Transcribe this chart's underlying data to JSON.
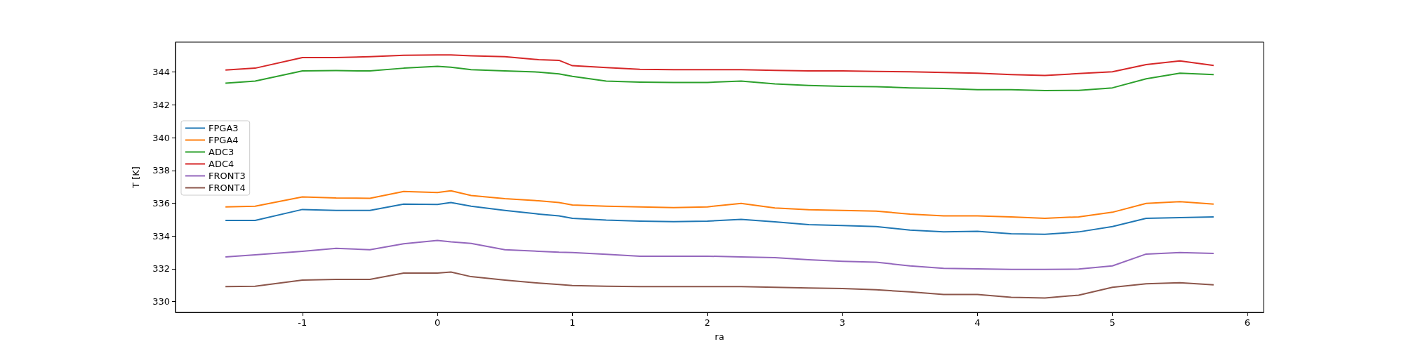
{
  "chart_data": {
    "type": "line",
    "xlabel": "ra",
    "ylabel": "T [K]",
    "x": [
      -1.57,
      -1.35,
      -1,
      -0.75,
      -0.5,
      -0.25,
      0,
      0.1,
      0.25,
      0.5,
      0.75,
      0.9,
      1,
      1.25,
      1.5,
      1.75,
      2,
      2.25,
      2.5,
      2.75,
      3,
      3.25,
      3.5,
      3.75,
      4,
      4.25,
      4.5,
      4.75,
      5,
      5.25,
      5.5,
      5.75
    ],
    "xlim": [
      -1.94,
      6.12
    ],
    "xticks": [
      -1,
      0,
      1,
      2,
      3,
      4,
      5,
      6
    ],
    "ylim": [
      329.34,
      345.83
    ],
    "yticks": [
      330,
      332,
      334,
      336,
      338,
      340,
      342,
      344
    ],
    "legend": "center left",
    "grid": false,
    "marker": "none",
    "line_style": "solid",
    "series": [
      {
        "name": "FPGA3",
        "color": "#1f77b4",
        "values": [
          334.95,
          334.95,
          335.62,
          335.56,
          335.56,
          335.95,
          335.93,
          336.04,
          335.82,
          335.56,
          335.34,
          335.23,
          335.08,
          334.97,
          334.91,
          334.88,
          334.91,
          335.01,
          334.86,
          334.69,
          334.64,
          334.58,
          334.36,
          334.25,
          334.29,
          334.14,
          334.1,
          334.25,
          334.58,
          335.08,
          335.12,
          335.17
        ]
      },
      {
        "name": "FPGA4",
        "color": "#ff7f0e",
        "values": [
          335.78,
          335.82,
          336.39,
          336.32,
          336.3,
          336.72,
          336.65,
          336.76,
          336.47,
          336.28,
          336.15,
          336.04,
          335.89,
          335.82,
          335.78,
          335.73,
          335.78,
          335.99,
          335.71,
          335.6,
          335.56,
          335.52,
          335.34,
          335.23,
          335.23,
          335.17,
          335.08,
          335.17,
          335.45,
          335.99,
          336.1,
          335.95
        ]
      },
      {
        "name": "ADC3",
        "color": "#2ca02c",
        "values": [
          343.32,
          343.45,
          344.07,
          344.09,
          344.07,
          344.24,
          344.35,
          344.3,
          344.15,
          344.07,
          344.0,
          343.89,
          343.74,
          343.45,
          343.39,
          343.37,
          343.37,
          343.45,
          343.28,
          343.19,
          343.13,
          343.11,
          343.04,
          343.0,
          342.93,
          342.93,
          342.87,
          342.89,
          343.04,
          343.59,
          343.93,
          343.85
        ]
      },
      {
        "name": "ADC4",
        "color": "#d62728",
        "values": [
          344.13,
          344.24,
          344.89,
          344.89,
          344.94,
          345.03,
          345.05,
          345.05,
          345.0,
          344.94,
          344.76,
          344.72,
          344.39,
          344.28,
          344.17,
          344.15,
          344.15,
          344.15,
          344.11,
          344.07,
          344.07,
          344.04,
          344.02,
          343.98,
          343.93,
          343.85,
          343.8,
          343.91,
          344.02,
          344.46,
          344.68,
          344.41
        ]
      },
      {
        "name": "FRONT3",
        "color": "#9467bd",
        "values": [
          332.72,
          332.85,
          333.07,
          333.25,
          333.16,
          333.53,
          333.73,
          333.64,
          333.55,
          333.16,
          333.07,
          333.01,
          332.99,
          332.88,
          332.77,
          332.77,
          332.77,
          332.72,
          332.68,
          332.55,
          332.46,
          332.4,
          332.18,
          332.03,
          332.0,
          331.96,
          331.96,
          331.98,
          332.18,
          332.9,
          332.99,
          332.94
        ]
      },
      {
        "name": "FRONT4",
        "color": "#8c564b",
        "values": [
          330.91,
          330.94,
          331.31,
          331.35,
          331.35,
          331.74,
          331.74,
          331.8,
          331.52,
          331.31,
          331.13,
          331.04,
          330.98,
          330.94,
          330.91,
          330.91,
          330.91,
          330.91,
          330.87,
          330.83,
          330.8,
          330.72,
          330.59,
          330.43,
          330.43,
          330.26,
          330.22,
          330.39,
          330.87,
          331.09,
          331.15,
          331.02
        ]
      }
    ]
  }
}
